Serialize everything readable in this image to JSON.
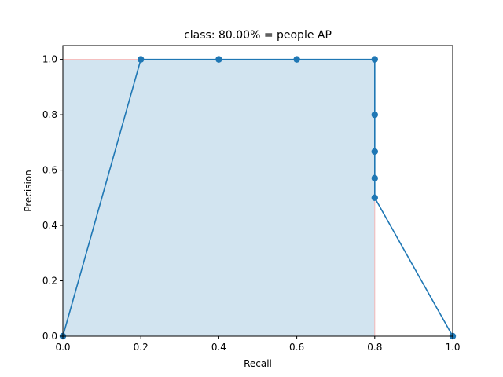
{
  "chart_data": {
    "type": "line",
    "title": "class: 80.00% = people AP",
    "xlabel": "Recall",
    "ylabel": "Precision",
    "xlim": [
      0.0,
      1.0
    ],
    "ylim": [
      0.0,
      1.05
    ],
    "xticks": [
      0.0,
      0.2,
      0.4,
      0.6,
      0.8,
      1.0
    ],
    "xtick_labels": [
      "0.0",
      "0.2",
      "0.4",
      "0.6",
      "0.8",
      "1.0"
    ],
    "yticks": [
      0.0,
      0.2,
      0.4,
      0.6,
      0.8,
      1.0
    ],
    "ytick_labels": [
      "0.0",
      "0.2",
      "0.4",
      "0.6",
      "0.8",
      "1.0"
    ],
    "grid": false,
    "legend": "none",
    "series": [
      {
        "kind": "line-with-markers",
        "color": "#1f77b4",
        "x": [
          0.0,
          0.2,
          0.4,
          0.6,
          0.8,
          0.8,
          0.8,
          0.8,
          0.8,
          1.0
        ],
        "y": [
          0.0,
          1.0,
          1.0,
          1.0,
          1.0,
          0.8,
          0.667,
          0.571,
          0.5,
          0.0
        ]
      }
    ],
    "area": {
      "kind": "filled-interpolated-precision",
      "fill_color": "#1f77b4",
      "fill_opacity": 0.2,
      "edge_color": "#f4b6b6",
      "x": [
        0.0,
        0.8,
        0.8
      ],
      "y": [
        1.0,
        1.0,
        0.0
      ]
    }
  }
}
